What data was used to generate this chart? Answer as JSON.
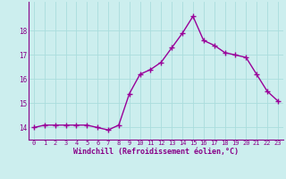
{
  "x": [
    0,
    1,
    2,
    3,
    4,
    5,
    6,
    7,
    8,
    9,
    10,
    11,
    12,
    13,
    14,
    15,
    16,
    17,
    18,
    19,
    20,
    21,
    22,
    23
  ],
  "y": [
    14.0,
    14.1,
    14.1,
    14.1,
    14.1,
    14.1,
    14.0,
    13.9,
    14.1,
    15.4,
    16.2,
    16.4,
    16.7,
    17.3,
    17.9,
    18.6,
    17.6,
    17.4,
    17.1,
    17.0,
    16.9,
    16.2,
    15.5,
    15.1
  ],
  "line_color": "#990099",
  "marker": "+",
  "marker_size": 4,
  "marker_lw": 1.0,
  "bg_color": "#cceeee",
  "grid_color": "#aadddd",
  "xlabel": "Windchill (Refroidissement éolien,°C)",
  "xlabel_color": "#880088",
  "tick_color": "#880088",
  "axis_color": "#880088",
  "ylim": [
    13.5,
    19.2
  ],
  "xlim": [
    -0.5,
    23.5
  ],
  "yticks": [
    14,
    15,
    16,
    17,
    18
  ],
  "xticks": [
    0,
    1,
    2,
    3,
    4,
    5,
    6,
    7,
    8,
    9,
    10,
    11,
    12,
    13,
    14,
    15,
    16,
    17,
    18,
    19,
    20,
    21,
    22,
    23
  ],
  "tick_fontsize": 5.0,
  "xlabel_fontsize": 6.0
}
